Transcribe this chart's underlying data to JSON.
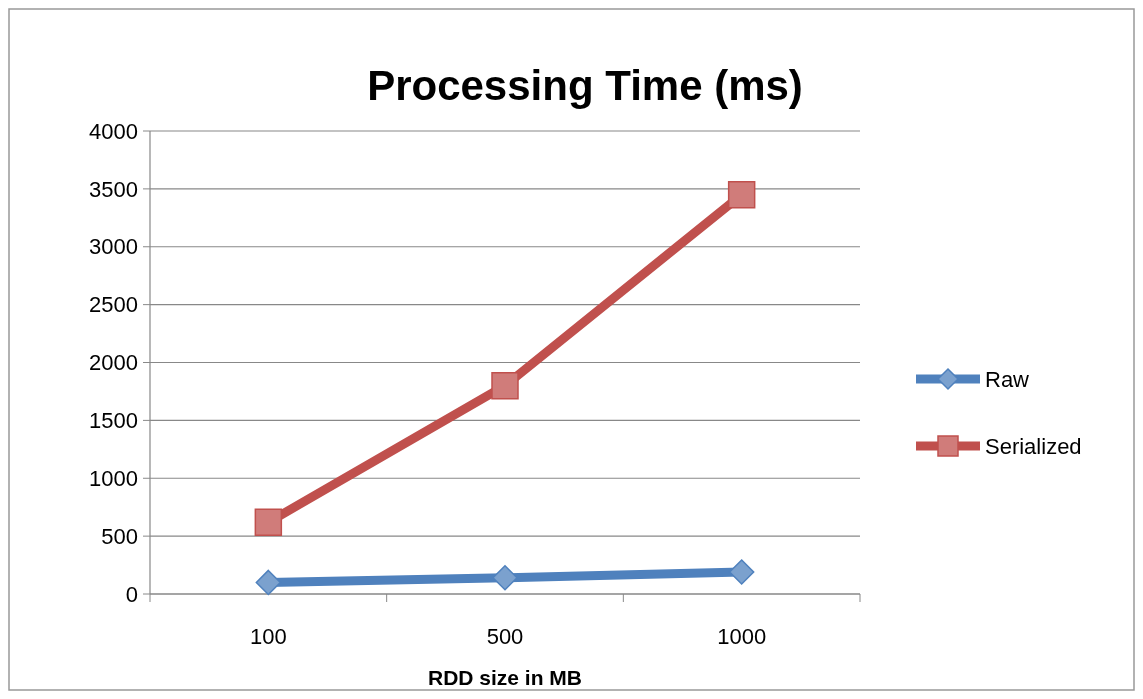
{
  "chart_data": {
    "type": "line",
    "title": "Processing Time (ms)",
    "xlabel": "RDD size in MB",
    "categories": [
      "100",
      "500",
      "1000"
    ],
    "series": [
      {
        "name": "Raw",
        "color": "#4f81bd",
        "values": [
          100,
          140,
          190
        ],
        "marker": "diamond"
      },
      {
        "name": "Serialized",
        "color": "#c0504d",
        "values": [
          620,
          1800,
          3450
        ],
        "marker": "square"
      }
    ],
    "ylim": [
      0,
      4000
    ],
    "yticks": [
      0,
      500,
      1000,
      1500,
      2000,
      2500,
      3000,
      3500,
      4000
    ],
    "grid": "y",
    "legend": "right",
    "line_style": "solid"
  }
}
